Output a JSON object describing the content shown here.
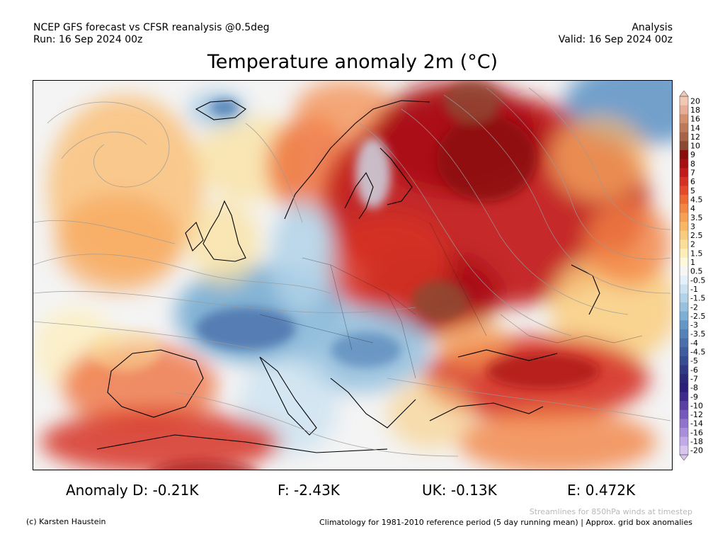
{
  "header": {
    "model_line": "NCEP GFS forecast vs CFSR reanalysis @0.5deg",
    "run_line": "Run: 16 Sep 2024 00z",
    "type_line": "Analysis",
    "valid_line": "Valid: 16 Sep 2024 00z"
  },
  "title": "Temperature anomaly 2m (°C)",
  "colorbar": {
    "levels": [
      "20",
      "18",
      "16",
      "14",
      "12",
      "10",
      "9",
      "8",
      "7",
      "6",
      "5",
      "4.5",
      "4",
      "3.5",
      "3",
      "2.5",
      "2",
      "1.5",
      "1",
      "0.5",
      "-0.5",
      "-1",
      "-1.5",
      "-2",
      "-2.5",
      "-3",
      "-3.5",
      "-4",
      "-4.5",
      "-5",
      "-6",
      "-7",
      "-8",
      "-9",
      "-10",
      "-12",
      "-14",
      "-16",
      "-18",
      "-20"
    ],
    "colors": [
      "#f2c8b4",
      "#e6ad97",
      "#d2906f",
      "#bd7a5b",
      "#a86247",
      "#8d4a32",
      "#8a0d0d",
      "#a80f12",
      "#c21c1a",
      "#d63223",
      "#e44b2b",
      "#ee6a35",
      "#f38545",
      "#f6a053",
      "#f8b765",
      "#f9cc7e",
      "#fbdf99",
      "#fdeeb8",
      "#fef8dd",
      "#f6f6f6",
      "#e6f0f8",
      "#cce2f0",
      "#b2d2e8",
      "#97c1de",
      "#7cafd3",
      "#6497c6",
      "#5583b8",
      "#4a70ab",
      "#405d9e",
      "#384c91",
      "#303a84",
      "#2b2a78",
      "#2c1f7a",
      "#3e2b8e",
      "#5a40a5",
      "#7558bb",
      "#9074cc",
      "#a98fdb",
      "#c1aae7",
      "#d8c6f1"
    ]
  },
  "stats": {
    "d_label": "Anomaly D: -0.21K",
    "f_label": "F: -2.43K",
    "uk_label": "UK: -0.13K",
    "e_label": "E: 0.472K"
  },
  "footer": {
    "streamlines_note": "Streamlines for 850hPa winds at timestep",
    "credit": "(c) Karsten Haustein",
    "climatology_note": "Climatology for 1981-2010 reference period (5 day running mean) | Approx. grid box anomalies"
  }
}
